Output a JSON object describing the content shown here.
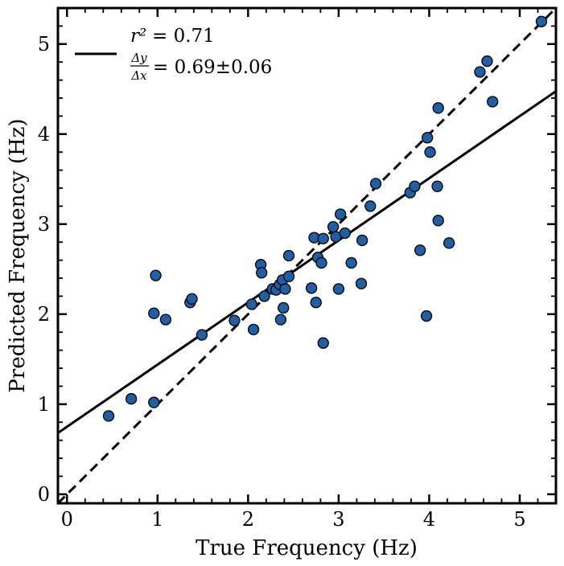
{
  "chart_data": {
    "type": "scatter",
    "title": "",
    "xlabel": "True Frequency (Hz)",
    "ylabel": "Predicted Frequency (Hz)",
    "xlim": [
      -0.1,
      5.4
    ],
    "ylim": [
      -0.1,
      5.4
    ],
    "xticks": [
      0,
      1,
      2,
      3,
      4,
      5
    ],
    "yticks": [
      0,
      1,
      2,
      3,
      4,
      5
    ],
    "xtick_labels": [
      "0",
      "1",
      "2",
      "3",
      "4",
      "5"
    ],
    "ytick_labels": [
      "0",
      "1",
      "2",
      "3",
      "4",
      "5"
    ],
    "grid": false,
    "legend_position": "top-left",
    "marker_color": "#1f5fa5",
    "line_color": "#000000",
    "legend": {
      "r2_label": "r²",
      "r2_text": "=  0.71",
      "slope_fraction_num": "Δy",
      "slope_fraction_den": "Δx",
      "slope_text": "= 0.69±0.06"
    },
    "fit_line": {
      "slope": 0.69,
      "intercept": 0.75
    },
    "identity_line": {
      "slope": 1,
      "intercept": 0
    },
    "points": [
      [
        0.46,
        0.87
      ],
      [
        0.71,
        1.06
      ],
      [
        0.96,
        1.02
      ],
      [
        0.96,
        2.01
      ],
      [
        0.98,
        2.43
      ],
      [
        1.09,
        1.94
      ],
      [
        1.36,
        2.13
      ],
      [
        1.38,
        2.17
      ],
      [
        1.49,
        1.77
      ],
      [
        1.85,
        1.93
      ],
      [
        2.04,
        2.11
      ],
      [
        2.06,
        1.83
      ],
      [
        2.14,
        2.55
      ],
      [
        2.15,
        2.46
      ],
      [
        2.18,
        2.2
      ],
      [
        2.27,
        2.28
      ],
      [
        2.31,
        2.27
      ],
      [
        2.35,
        2.33
      ],
      [
        2.36,
        1.94
      ],
      [
        2.38,
        2.38
      ],
      [
        2.39,
        2.07
      ],
      [
        2.41,
        2.28
      ],
      [
        2.45,
        2.42
      ],
      [
        2.45,
        2.65
      ],
      [
        2.7,
        2.29
      ],
      [
        2.73,
        2.85
      ],
      [
        2.75,
        2.13
      ],
      [
        2.77,
        2.63
      ],
      [
        2.81,
        2.57
      ],
      [
        2.83,
        2.84
      ],
      [
        2.83,
        1.68
      ],
      [
        2.94,
        2.97
      ],
      [
        2.97,
        2.86
      ],
      [
        3.0,
        2.28
      ],
      [
        3.02,
        3.11
      ],
      [
        3.07,
        2.9
      ],
      [
        3.14,
        2.57
      ],
      [
        3.25,
        2.34
      ],
      [
        3.26,
        2.82
      ],
      [
        3.35,
        3.2
      ],
      [
        3.41,
        3.45
      ],
      [
        3.79,
        3.35
      ],
      [
        3.84,
        3.42
      ],
      [
        3.9,
        2.71
      ],
      [
        3.97,
        1.98
      ],
      [
        3.98,
        3.96
      ],
      [
        4.01,
        3.8
      ],
      [
        4.09,
        3.42
      ],
      [
        4.1,
        4.29
      ],
      [
        4.1,
        3.04
      ],
      [
        4.22,
        2.79
      ],
      [
        4.56,
        4.69
      ],
      [
        4.64,
        4.81
      ],
      [
        4.7,
        4.36
      ],
      [
        5.24,
        5.25
      ]
    ]
  }
}
